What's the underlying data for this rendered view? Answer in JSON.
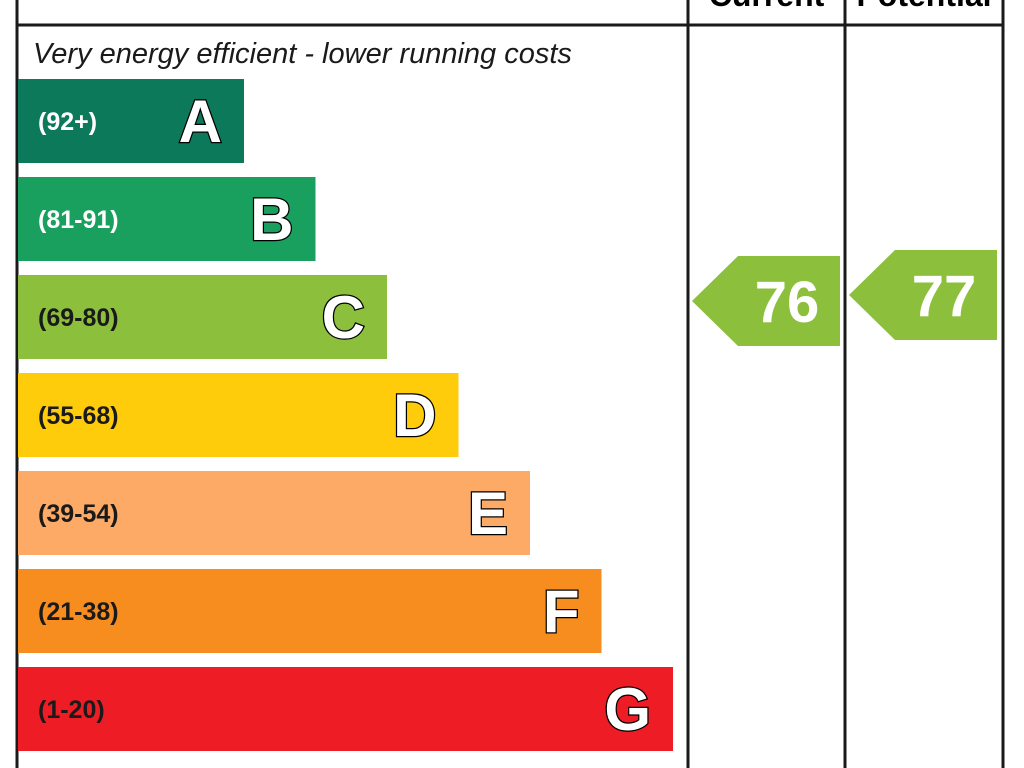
{
  "chart_data": {
    "type": "bar",
    "columns": {
      "current": "Current",
      "potential": "Potential"
    },
    "top_note": "Very energy efficient - lower running costs",
    "bands": [
      {
        "letter": "A",
        "range": "(92+)",
        "min": 92,
        "max": 100,
        "color": "#0c7a5a",
        "range_text_color": "#ffffff"
      },
      {
        "letter": "B",
        "range": "(81-91)",
        "min": 81,
        "max": 91,
        "color": "#19a05f",
        "range_text_color": "#ffffff"
      },
      {
        "letter": "C",
        "range": "(69-80)",
        "min": 69,
        "max": 80,
        "color": "#8cc03c",
        "range_text_color": "#1a1a1a"
      },
      {
        "letter": "D",
        "range": "(55-68)",
        "min": 55,
        "max": 68,
        "color": "#fecc0a",
        "range_text_color": "#1a1a1a"
      },
      {
        "letter": "E",
        "range": "(39-54)",
        "min": 39,
        "max": 54,
        "color": "#fcaa65",
        "range_text_color": "#1a1a1a"
      },
      {
        "letter": "F",
        "range": "(21-38)",
        "min": 21,
        "max": 38,
        "color": "#f68d1e",
        "range_text_color": "#1a1a1a"
      },
      {
        "letter": "G",
        "range": "(1-20)",
        "min": 1,
        "max": 20,
        "color": "#ee1c25",
        "range_text_color": "#1a1a1a"
      }
    ],
    "current": {
      "value": 76,
      "band": "C",
      "color": "#8cc03c"
    },
    "potential": {
      "value": 77,
      "band": "C",
      "color": "#8cc03c"
    }
  }
}
